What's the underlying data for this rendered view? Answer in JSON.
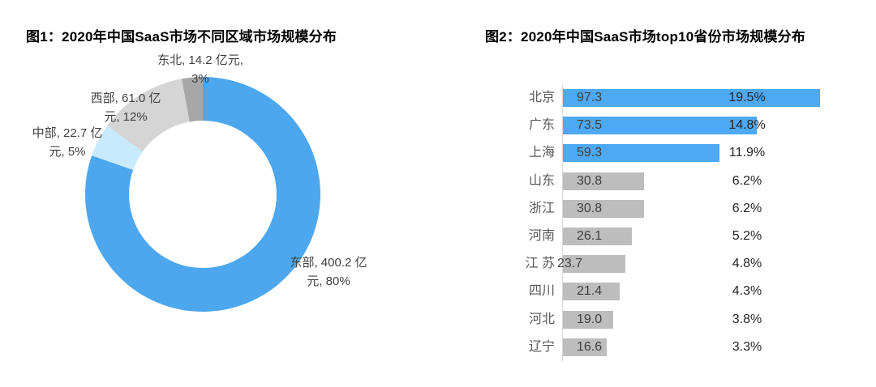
{
  "page": {
    "background": "#ffffff"
  },
  "chart_data": [
    {
      "type": "pie",
      "subtype": "donut",
      "title": "图1：2020年中国SaaS市场不同区域市场规模分布",
      "unit": "亿元",
      "start_angle": "12-oclock",
      "direction": "clockwise",
      "legend": false,
      "slices": [
        {
          "label": "东部",
          "value": 400.2,
          "percent": "80%",
          "color": "#4CA7EE"
        },
        {
          "label": "中部",
          "value": 22.7,
          "percent": "5%",
          "color": "#C9E9FC"
        },
        {
          "label": "西部",
          "value": 61.0,
          "percent": "12%",
          "color": "#D5D5D5"
        },
        {
          "label": "东北",
          "value": 14.2,
          "percent": "3%",
          "color": "#A7A7A7"
        }
      ],
      "labels": [
        {
          "line1": "东部, 400.2 亿",
          "line2": "元, 80%"
        },
        {
          "line1": "中部, 22.7 亿",
          "line2": "元, 5%"
        },
        {
          "line1": "西部, 61.0 亿",
          "line2": "元, 12%"
        },
        {
          "line1": "东北, 14.2 亿元,",
          "line2": "3%"
        }
      ]
    },
    {
      "type": "bar",
      "orientation": "horizontal",
      "title": "图2：2020年中国SaaS市场top10省份市场规模分布",
      "unit": "亿元",
      "grid": false,
      "legend": false,
      "xlim": [
        0,
        100
      ],
      "categories": [
        "北京",
        "广东",
        "上海",
        "山东",
        "浙江",
        "河南",
        "江 苏",
        "四川",
        "河北",
        "辽宁"
      ],
      "values": [
        97.3,
        73.5,
        59.3,
        30.8,
        30.8,
        26.1,
        23.7,
        21.4,
        19.0,
        16.6
      ],
      "percent_labels": [
        "19.5%",
        "14.8%",
        "11.9%",
        "6.2%",
        "6.2%",
        "5.2%",
        "4.8%",
        "4.3%",
        "3.8%",
        "3.3%"
      ],
      "highlight_count": 3,
      "colors": {
        "highlight": "#4DA9F3",
        "normal": "#BDBDBD",
        "axis": "#D9D9D9",
        "category_text": "#595959",
        "value_text": "#404040",
        "percent_text": "#262626"
      }
    }
  ]
}
